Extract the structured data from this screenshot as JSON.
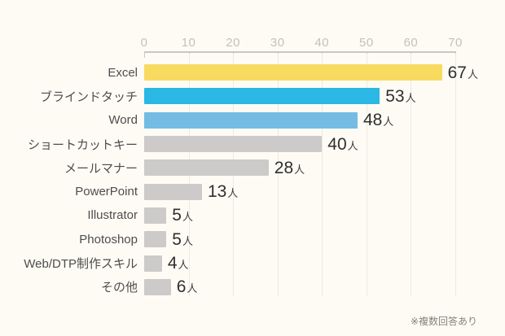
{
  "chart_data": {
    "type": "bar",
    "orientation": "horizontal",
    "title": "",
    "categories": [
      "Excel",
      "ブラインドタッチ",
      "Word",
      "ショートカットキー",
      "メールマナー",
      "PowerPoint",
      "Illustrator",
      "Photoshop",
      "Web/DTP制作スキル",
      "その他"
    ],
    "values": [
      67,
      53,
      48,
      40,
      28,
      13,
      5,
      5,
      4,
      6
    ],
    "unit_suffix": "人",
    "xlim": [
      0,
      70
    ],
    "ticks": [
      0,
      10,
      20,
      30,
      40,
      50,
      60,
      70
    ],
    "grid": "vertical",
    "legend_position": "none",
    "bar_colors": [
      "#f8da60",
      "#2cb8e4",
      "#74bce4",
      "#cccbc9",
      "#cccbc9",
      "#cccbc9",
      "#cccbc9",
      "#cccbc9",
      "#cccbc9",
      "#cccbc9"
    ],
    "footnote": "※複数回答あり"
  },
  "colors": {
    "background": "#fdfbf4",
    "axis_line": "#c9c7c2",
    "tick_label": "#c4c1ba",
    "gridline": "#ece9e1",
    "category_label": "#4d4d4d",
    "value_label": "#2f2f2f",
    "footnote": "#85827c"
  }
}
